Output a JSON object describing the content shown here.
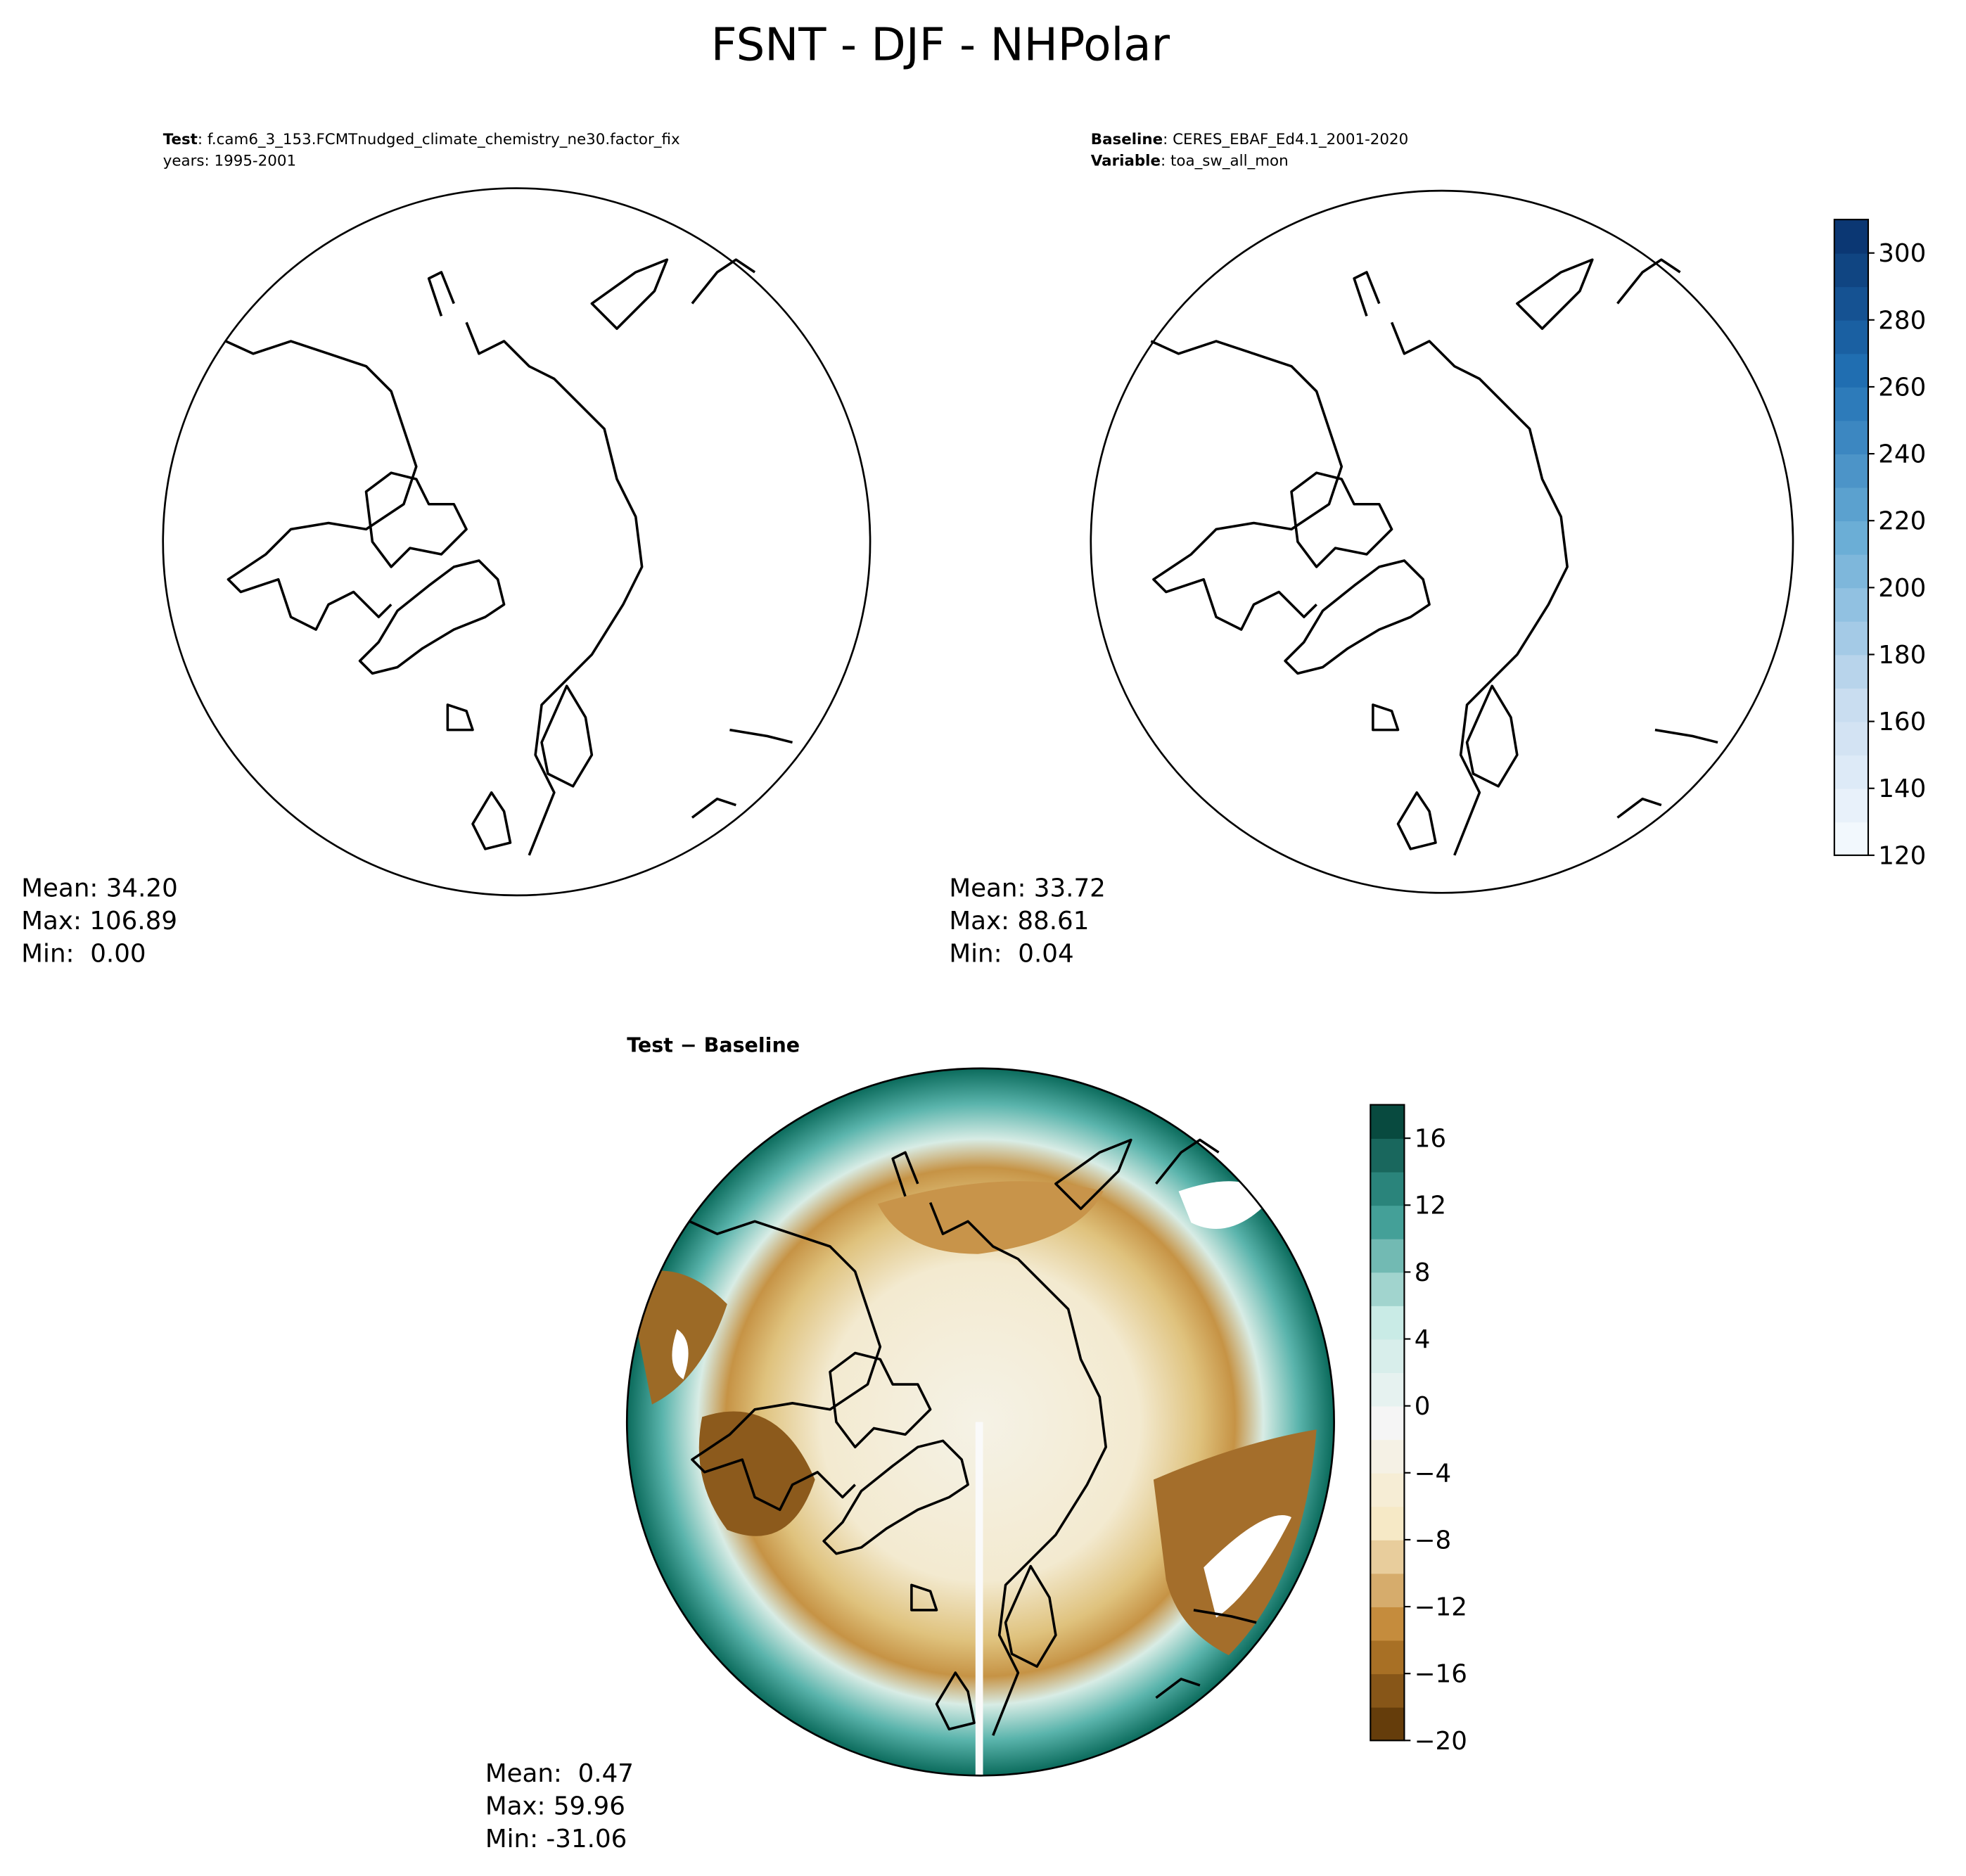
{
  "chart_data": {
    "type": "polar_map",
    "title": "FSNT - DJF - NHPolar",
    "panels": [
      {
        "label": "Test",
        "text": ": f.cam6_3_153.FCMTnudged_climate_chemistry_ne30.factor_fix",
        "subtitle": "years: 1995-2001",
        "stats": [
          "Mean: 34.20",
          "Max: 106.89",
          "Min:  0.00"
        ]
      },
      {
        "label": "Baseline",
        "text": ": CERES_EBAF_Ed4.1_2001-2020",
        "label2": "Variable",
        "text2": ": toa_sw_all_mon",
        "stats": [
          "Mean: 33.72",
          "Max: 88.61",
          "Min:  0.04"
        ]
      },
      {
        "label": "Test − Baseline",
        "stats": [
          "Mean:  0.47",
          "Max: 59.96",
          "Min: -31.06"
        ]
      }
    ],
    "colorbars": [
      {
        "ylim": [
          120,
          310
        ],
        "yticks": [
          120,
          140,
          160,
          180,
          200,
          220,
          240,
          260,
          280,
          300
        ],
        "colors": [
          "#f7fbff",
          "#c6dbef",
          "#6baed6",
          "#2171b5",
          "#08306b"
        ]
      },
      {
        "ylim": [
          -20,
          18
        ],
        "yticks": [
          {
            "value": -20,
            "label": "−20"
          },
          {
            "value": -16,
            "label": "−16"
          },
          {
            "value": -12,
            "label": "−12"
          },
          {
            "value": -8,
            "label": "−8"
          },
          {
            "value": -4,
            "label": "−4"
          },
          0,
          4,
          8,
          12,
          16
        ],
        "colors": [
          "#543005",
          "#bf812d",
          "#f6e8c3",
          "#f5f5f5",
          "#c7eae5",
          "#35978f",
          "#003c30"
        ]
      }
    ]
  }
}
